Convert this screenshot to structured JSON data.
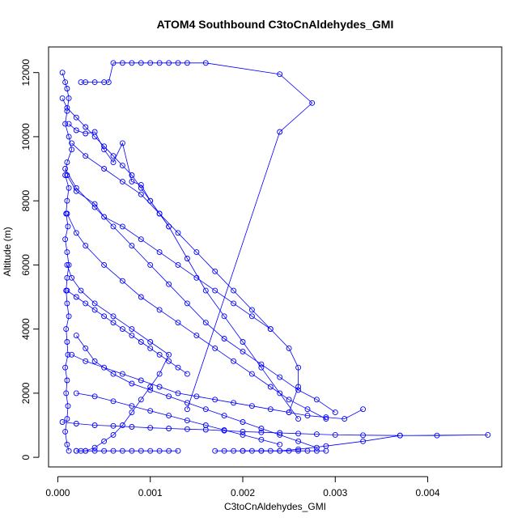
{
  "chart_data": {
    "type": "line",
    "title": "ATOM4 Southbound C3toCnAldehydes_GMI",
    "xlabel": "C3toCnAldehydes_GMI",
    "ylabel": "Altitude (m)",
    "xlim": [
      -0.0001,
      0.0048
    ],
    "ylim": [
      -300,
      12800
    ],
    "x_ticks": [
      0.0,
      0.001,
      0.002,
      0.003,
      0.004
    ],
    "x_tick_labels": [
      "0.000",
      "0.001",
      "0.002",
      "0.003",
      "0.004"
    ],
    "y_ticks": [
      0,
      2000,
      4000,
      6000,
      8000,
      10000,
      12000
    ],
    "y_tick_labels": [
      "0",
      "2000",
      "4000",
      "6000",
      "8000",
      "10000",
      "12000"
    ],
    "line_color": "#0000ff",
    "marker": "open-circle",
    "series": [
      {
        "x": [
          5e-05,
          8e-05,
          0.0001,
          0.00012,
          0.0001,
          8e-05,
          0.00012,
          0.00015,
          0.0001,
          8e-05,
          0.00012,
          0.0001,
          9e-05,
          0.00011,
          8e-05,
          0.0001,
          0.00012,
          0.0001,
          9e-05,
          0.0001,
          0.00012,
          9e-05,
          0.0001,
          0.00011,
          8e-05,
          0.0001,
          9e-05,
          0.00011,
          0.0001,
          8e-05,
          0.0001,
          0.00012
        ],
        "y": [
          12000,
          11700,
          11500,
          11200,
          10800,
          10400,
          10000,
          9600,
          9200,
          8800,
          8400,
          8000,
          7600,
          7200,
          6800,
          6400,
          6000,
          5600,
          5200,
          4800,
          4400,
          4000,
          3600,
          3200,
          2800,
          2400,
          2000,
          1600,
          1200,
          800,
          400,
          200
        ]
      },
      {
        "x": [
          0.00025,
          0.0003,
          0.0004,
          0.0005,
          0.00055,
          0.0006,
          0.0007,
          0.0008,
          0.0009,
          0.001,
          0.0011,
          0.0012,
          0.0013,
          0.0014,
          0.0016,
          0.0024,
          0.00275,
          0.0024,
          0.0014
        ],
        "y": [
          11700,
          11700,
          11700,
          11700,
          11700,
          12300,
          12300,
          12300,
          12300,
          12300,
          12300,
          12300,
          12300,
          12300,
          12300,
          11950,
          11050,
          10150,
          1500
        ]
      },
      {
        "x": [
          5e-05,
          0.0002,
          0.0004,
          0.0006,
          0.0008,
          0.001,
          0.0012,
          0.0014,
          0.0016,
          0.0018,
          0.002,
          0.0022,
          0.0024,
          0.0026,
          0.0028,
          0.003,
          0.0033,
          0.0037,
          0.0041,
          0.00465,
          0.0037,
          0.0033,
          0.0029,
          0.0026,
          0.0024,
          0.0022,
          0.002
        ],
        "y": [
          1100,
          1050,
          1000,
          980,
          950,
          920,
          900,
          880,
          860,
          830,
          800,
          780,
          760,
          740,
          720,
          700,
          690,
          680,
          680,
          700,
          680,
          500,
          350,
          250,
          200,
          200,
          200
        ]
      },
      {
        "x": [
          0.00015,
          0.0003,
          0.0005,
          0.0007,
          0.0009,
          0.0011,
          0.0013,
          0.0015,
          0.0017,
          0.0019,
          0.0021,
          0.0023,
          0.0025,
          0.0026,
          0.0026,
          0.0025
        ],
        "y": [
          9800,
          9400,
          9000,
          8600,
          8200,
          7600,
          7000,
          6400,
          5800,
          5200,
          4600,
          4000,
          3400,
          2800,
          2200,
          1400
        ]
      },
      {
        "x": [
          8e-05,
          0.0002,
          0.0004,
          0.0006,
          0.0008,
          0.001,
          0.0012,
          0.0014,
          0.0016,
          0.0018,
          0.002,
          0.0022,
          0.0024,
          0.0026,
          0.0028,
          0.003
        ],
        "y": [
          9000,
          8400,
          7800,
          7200,
          6600,
          6000,
          5400,
          4800,
          4200,
          3700,
          3300,
          2900,
          2500,
          2100,
          1800,
          1400
        ]
      },
      {
        "x": [
          0.00012,
          0.0002,
          0.0003,
          0.0004,
          0.0005,
          0.0006,
          0.0007,
          0.0008,
          0.0009,
          0.001,
          0.0012,
          0.0014,
          0.0016,
          0.0018,
          0.002,
          0.0022,
          0.0024,
          0.0026
        ],
        "y": [
          10400,
          10200,
          10100,
          10150,
          9600,
          9200,
          9800,
          8600,
          8500,
          8000,
          7200,
          6200,
          5200,
          4400,
          3600,
          2800,
          2000,
          1200
        ]
      },
      {
        "x": [
          0.0001,
          0.0002,
          0.0003,
          0.0005,
          0.0007,
          0.0009,
          0.0011,
          0.0013,
          0.0015,
          0.0017,
          0.0019,
          0.0021,
          0.0023,
          0.0025,
          0.0027,
          0.0029
        ],
        "y": [
          7600,
          7000,
          6600,
          6000,
          5500,
          5000,
          4600,
          4200,
          3800,
          3400,
          3000,
          2600,
          2200,
          1800,
          1500,
          1200
        ]
      },
      {
        "x": [
          0.0002,
          0.0003,
          0.0004,
          0.0006,
          0.0008,
          0.001,
          0.0012,
          0.0014,
          0.0016,
          0.0018,
          0.002,
          0.0022,
          0.0024,
          0.0026,
          0.0028
        ],
        "y": [
          3800,
          3400,
          3000,
          2600,
          2300,
          2100,
          1900,
          1700,
          1500,
          1300,
          1100,
          900,
          700,
          500,
          300
        ]
      },
      {
        "x": [
          0.0001,
          0.00015,
          0.00025,
          0.0004,
          0.0006,
          0.0008,
          0.001,
          0.0012,
          0.0011,
          0.001,
          0.0009,
          0.0008,
          0.0007,
          0.0006,
          0.0005,
          0.0004,
          0.0003,
          0.0002
        ],
        "y": [
          6000,
          5600,
          5200,
          4800,
          4400,
          4000,
          3600,
          3200,
          2600,
          2200,
          1800,
          1400,
          1000,
          700,
          500,
          300,
          200,
          200
        ]
      },
      {
        "x": [
          0.0002,
          0.0004,
          0.0006,
          0.0008,
          0.001,
          0.0012,
          0.0014,
          0.0016,
          0.0018,
          0.002,
          0.0022,
          0.0024
        ],
        "y": [
          2000,
          1900,
          1750,
          1600,
          1450,
          1300,
          1150,
          1000,
          850,
          700,
          550,
          400
        ]
      },
      {
        "x": [
          0.0001,
          0.0002,
          0.0004,
          0.0005,
          0.0007,
          0.0009,
          0.0011,
          0.0013,
          0.0015,
          0.0017,
          0.0019,
          0.0021,
          0.0023
        ],
        "y": [
          8800,
          8300,
          7900,
          7500,
          7200,
          6800,
          6400,
          6000,
          5600,
          5200,
          4800,
          4400,
          4000
        ]
      },
      {
        "x": [
          0.00015,
          0.0003,
          0.0005,
          0.0007,
          0.0009,
          0.0011,
          0.0013,
          0.0015,
          0.0017,
          0.0019,
          0.0021,
          0.0023,
          0.0025,
          0.0027,
          0.0029,
          0.0031,
          0.0033
        ],
        "y": [
          3200,
          3000,
          2800,
          2600,
          2400,
          2200,
          2000,
          1900,
          1800,
          1700,
          1600,
          1500,
          1400,
          1300,
          1250,
          1200,
          1500
        ]
      },
      {
        "x": [
          0.0002,
          0.00025,
          0.0003,
          0.0004,
          0.0005,
          0.0006,
          0.0007,
          0.0008,
          0.0009,
          0.001,
          0.0011,
          0.0012,
          0.0013
        ],
        "y": [
          200,
          200,
          200,
          200,
          200,
          200,
          200,
          200,
          200,
          200,
          200,
          200,
          200
        ]
      },
      {
        "x": [
          0.0017,
          0.0018,
          0.0019,
          0.002,
          0.0021,
          0.0022,
          0.0023,
          0.0024,
          0.0025,
          0.0026,
          0.0027,
          0.0028,
          0.0029
        ],
        "y": [
          200,
          200,
          200,
          200,
          200,
          200,
          200,
          200,
          200,
          200,
          200,
          200,
          200
        ]
      },
      {
        "x": [
          5e-05,
          0.0001,
          0.0002,
          0.0003,
          0.0004,
          0.0005,
          0.0006,
          0.0007,
          0.0008,
          0.0009,
          0.001,
          0.0011,
          0.0012
        ],
        "y": [
          11200,
          10900,
          10600,
          10300,
          10000,
          9700,
          9400,
          9100,
          8800,
          8400,
          8000,
          7600,
          7200
        ]
      },
      {
        "x": [
          0.0001,
          0.0002,
          0.0003,
          0.0004,
          0.0005,
          0.0006,
          0.0007,
          0.0008,
          0.0009,
          0.001,
          0.0011,
          0.0012,
          0.0013,
          0.0014
        ],
        "y": [
          5200,
          5000,
          4800,
          4600,
          4400,
          4200,
          4000,
          3800,
          3600,
          3400,
          3200,
          3000,
          2800,
          2600
        ]
      }
    ]
  }
}
